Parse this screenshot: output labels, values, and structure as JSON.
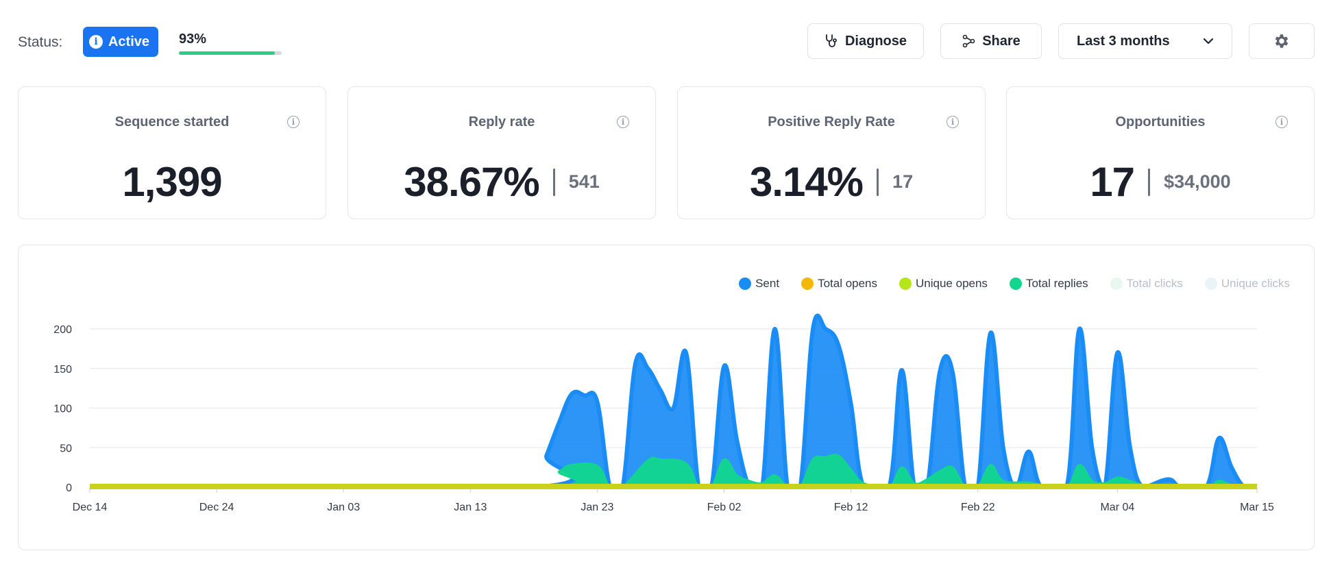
{
  "header": {
    "status_label": "Status:",
    "status_badge": "Active",
    "progress_text": "93%",
    "progress_fraction": 0.93,
    "buttons": {
      "diagnose": "Diagnose",
      "share": "Share",
      "range": "Last 3 months"
    },
    "icons": {
      "diagnose": "stethoscope-icon",
      "share": "share-nodes-icon",
      "range": "chevron-down-icon",
      "settings": "gear-icon",
      "status": "info-icon"
    },
    "colors": {
      "accent": "#1a73f0",
      "progress": "#2ecc87"
    }
  },
  "cards": [
    {
      "title": "Sequence started",
      "value": "1,399",
      "sub": ""
    },
    {
      "title": "Reply rate",
      "value": "38.67%",
      "sub": "541"
    },
    {
      "title": "Positive Reply Rate",
      "value": "3.14%",
      "sub": "17"
    },
    {
      "title": "Opportunities",
      "value": "17",
      "sub": "$34,000"
    }
  ],
  "legend": [
    {
      "name": "Sent",
      "color": "#1a8cf5",
      "dim": false
    },
    {
      "name": "Total opens",
      "color": "#f5b800",
      "dim": false
    },
    {
      "name": "Unique opens",
      "color": "#b5e619",
      "dim": false
    },
    {
      "name": "Total replies",
      "color": "#12d68e",
      "dim": false
    },
    {
      "name": "Total clicks",
      "color": "#eaf6f0",
      "dim": true
    },
    {
      "name": "Unique clicks",
      "color": "#eaf3f7",
      "dim": true
    }
  ],
  "chart_data": {
    "type": "area",
    "title": "",
    "xlabel": "",
    "ylabel": "",
    "x_range": [
      "Dec 14",
      "Mar 15"
    ],
    "x_ticks": [
      "Dec 14",
      "Dec 24",
      "Jan 03",
      "Jan 13",
      "Jan 23",
      "Feb 02",
      "Feb 12",
      "Feb 22",
      "Mar 04",
      "Mar 15"
    ],
    "y_ticks": [
      0,
      50,
      100,
      150,
      200
    ],
    "ylim": [
      0,
      200
    ],
    "grid": true,
    "legend_position": "top-right",
    "series": [
      {
        "name": "Sent",
        "color": "#1a8cf5",
        "points": [
          [
            "Dec 14",
            0
          ],
          [
            "Jan 18",
            0
          ],
          [
            "Jan 19",
            40
          ],
          [
            "Jan 20",
            82
          ],
          [
            "Jan 21",
            118
          ],
          [
            "Jan 22",
            116
          ],
          [
            "Jan 23",
            108
          ],
          [
            "Jan 24",
            0
          ],
          [
            "Jan 25",
            0
          ],
          [
            "Jan 26",
            156
          ],
          [
            "Jan 27",
            150
          ],
          [
            "Jan 28",
            122
          ],
          [
            "Jan 29",
            100
          ],
          [
            "Jan 30",
            170
          ],
          [
            "Jan 31",
            0
          ],
          [
            "Feb 01",
            0
          ],
          [
            "Feb 02",
            153
          ],
          [
            "Feb 03",
            60
          ],
          [
            "Feb 04",
            0
          ],
          [
            "Feb 05",
            0
          ],
          [
            "Feb 06",
            200
          ],
          [
            "Feb 07",
            0
          ],
          [
            "Feb 08",
            0
          ],
          [
            "Feb 09",
            200
          ],
          [
            "Feb 10",
            200
          ],
          [
            "Feb 11",
            180
          ],
          [
            "Feb 12",
            105
          ],
          [
            "Feb 13",
            0
          ],
          [
            "Feb 15",
            0
          ],
          [
            "Feb 16",
            148
          ],
          [
            "Feb 17",
            0
          ],
          [
            "Feb 18",
            0
          ],
          [
            "Feb 19",
            146
          ],
          [
            "Feb 20",
            146
          ],
          [
            "Feb 21",
            0
          ],
          [
            "Feb 22",
            0
          ],
          [
            "Feb 23",
            195
          ],
          [
            "Feb 24",
            50
          ],
          [
            "Feb 25",
            0
          ],
          [
            "Feb 26",
            45
          ],
          [
            "Feb 27",
            0
          ],
          [
            "Feb 29",
            0
          ],
          [
            "Mar 01",
            200
          ],
          [
            "Mar 02",
            50
          ],
          [
            "Mar 03",
            0
          ],
          [
            "Mar 04",
            170
          ],
          [
            "Mar 05",
            50
          ],
          [
            "Mar 06",
            0
          ],
          [
            "Mar 08",
            10
          ],
          [
            "Mar 09",
            0
          ],
          [
            "Mar 11",
            0
          ],
          [
            "Mar 12",
            62
          ],
          [
            "Mar 13",
            25
          ],
          [
            "Mar 14",
            0
          ],
          [
            "Mar 15",
            0
          ]
        ]
      },
      {
        "name": "Total replies",
        "color": "#12d68e",
        "points": [
          [
            "Dec 14",
            0
          ],
          [
            "Jan 18",
            0
          ],
          [
            "Jan 20",
            20
          ],
          [
            "Jan 21",
            28
          ],
          [
            "Jan 23",
            27
          ],
          [
            "Jan 24",
            0
          ],
          [
            "Jan 25",
            0
          ],
          [
            "Jan 27",
            34
          ],
          [
            "Jan 28",
            35
          ],
          [
            "Jan 30",
            30
          ],
          [
            "Jan 31",
            0
          ],
          [
            "Feb 01",
            0
          ],
          [
            "Feb 02",
            35
          ],
          [
            "Feb 03",
            15
          ],
          [
            "Feb 04",
            8
          ],
          [
            "Feb 05",
            5
          ],
          [
            "Feb 06",
            15
          ],
          [
            "Feb 07",
            0
          ],
          [
            "Feb 08",
            0
          ],
          [
            "Feb 09",
            35
          ],
          [
            "Feb 10",
            38
          ],
          [
            "Feb 11",
            40
          ],
          [
            "Feb 12",
            22
          ],
          [
            "Feb 13",
            5
          ],
          [
            "Feb 15",
            0
          ],
          [
            "Feb 16",
            25
          ],
          [
            "Feb 17",
            5
          ],
          [
            "Feb 18",
            10
          ],
          [
            "Feb 19",
            20
          ],
          [
            "Feb 20",
            25
          ],
          [
            "Feb 21",
            0
          ],
          [
            "Feb 22",
            0
          ],
          [
            "Feb 23",
            28
          ],
          [
            "Feb 24",
            8
          ],
          [
            "Feb 26",
            6
          ],
          [
            "Feb 27",
            3
          ],
          [
            "Feb 29",
            0
          ],
          [
            "Mar 01",
            28
          ],
          [
            "Mar 02",
            8
          ],
          [
            "Mar 03",
            5
          ],
          [
            "Mar 04",
            12
          ],
          [
            "Mar 05",
            8
          ],
          [
            "Mar 06",
            3
          ],
          [
            "Mar 08",
            2
          ],
          [
            "Mar 11",
            0
          ],
          [
            "Mar 12",
            8
          ],
          [
            "Mar 13",
            3
          ],
          [
            "Mar 15",
            0
          ]
        ]
      },
      {
        "name": "Unique opens",
        "color": "#c9d21a",
        "points": [
          [
            "Dec 14",
            0
          ],
          [
            "Mar 15",
            0
          ]
        ]
      }
    ]
  }
}
